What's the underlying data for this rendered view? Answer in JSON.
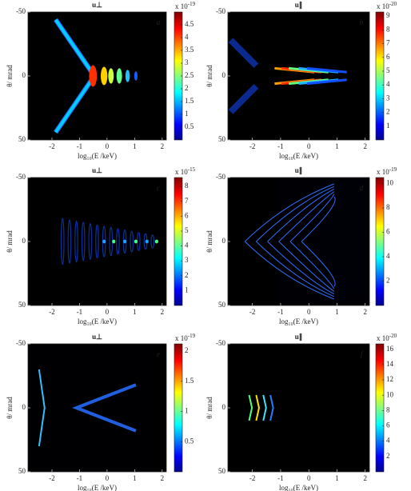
{
  "chart_data": [
    {
      "type": "heatmap",
      "title": "u⊥",
      "panel_label": "a",
      "xlabel": "log₁₀(E /keV)",
      "ylabel": "θ/ mrad",
      "xlim": [
        -2.87,
        2.15
      ],
      "xticks": [
        -2,
        -1,
        0,
        1,
        2
      ],
      "ylim": [
        -50,
        50
      ],
      "yticks": [
        -50,
        0,
        50
      ],
      "y_reversed": true,
      "colormap": "jet",
      "clim": [
        0,
        5
      ],
      "cticks": [
        0.5,
        1,
        1.5,
        2,
        2.5,
        3,
        3.5,
        4,
        4.5
      ],
      "cscale": "x 10",
      "cscale_exponent": "-19"
    },
    {
      "type": "heatmap",
      "title": "u∥",
      "panel_label": "b",
      "xlabel": "log₁₀(E /keV)",
      "ylabel": "θ/ mrad",
      "xlim": [
        -2.87,
        2.15
      ],
      "xticks": [
        -2,
        -1,
        0,
        1,
        2
      ],
      "ylim": [
        -50,
        50
      ],
      "yticks": [
        -50,
        0,
        50
      ],
      "y_reversed": true,
      "colormap": "jet",
      "clim": [
        0,
        9.3
      ],
      "cticks": [
        1,
        2,
        3,
        4,
        5,
        6,
        7,
        8,
        9
      ],
      "cscale": "x 10",
      "cscale_exponent": "-20"
    },
    {
      "type": "heatmap",
      "title": "u⊥",
      "panel_label": "c",
      "xlabel": "log₁₀(E /keV)",
      "ylabel": "θ/ mrad",
      "xlim": [
        -2.87,
        2.15
      ],
      "xticks": [
        -2,
        -1,
        0,
        1,
        2
      ],
      "ylim": [
        -50,
        50
      ],
      "yticks": [
        -50,
        0,
        50
      ],
      "y_reversed": true,
      "colormap": "jet",
      "clim": [
        0,
        8.6
      ],
      "cticks": [
        1,
        2,
        3,
        4,
        5,
        6,
        7,
        8
      ],
      "cscale": "x 10",
      "cscale_exponent": "-15"
    },
    {
      "type": "heatmap",
      "title": "u∥",
      "panel_label": "d",
      "xlabel": "log₁₀(E /keV)",
      "ylabel": "θ/ mrad",
      "xlim": [
        -2.87,
        2.15
      ],
      "xticks": [
        -2,
        -1,
        0,
        1,
        2
      ],
      "ylim": [
        -50,
        50
      ],
      "yticks": [
        -50,
        0,
        50
      ],
      "y_reversed": true,
      "colormap": "jet",
      "clim": [
        0,
        10.5
      ],
      "cticks": [
        2,
        4,
        6,
        8,
        10
      ],
      "cscale": "x 10",
      "cscale_exponent": "-19"
    },
    {
      "type": "heatmap",
      "title": "u⊥",
      "panel_label": "e",
      "xlabel": "log₁₀(E /keV)",
      "ylabel": "θ/ mrad",
      "xlim": [
        -2.87,
        2.15
      ],
      "xticks": [
        -2,
        -1,
        0,
        1,
        2
      ],
      "ylim": [
        -50,
        50
      ],
      "yticks": [
        -50,
        0,
        50
      ],
      "y_reversed": true,
      "colormap": "jet",
      "clim": [
        0,
        2.12
      ],
      "cticks": [
        0.5,
        1,
        1.5,
        2
      ],
      "cscale": "x 10",
      "cscale_exponent": "-19"
    },
    {
      "type": "heatmap",
      "title": "u∥",
      "panel_label": "f",
      "xlabel": "log₁₀(E /keV)",
      "ylabel": "θ/ mrad",
      "xlim": [
        -2.87,
        2.15
      ],
      "xticks": [
        -2,
        -1,
        0,
        1,
        2
      ],
      "ylim": [
        -50,
        50
      ],
      "yticks": [
        -50,
        0,
        50
      ],
      "y_reversed": true,
      "colormap": "jet",
      "clim": [
        0,
        16.7
      ],
      "cticks": [
        2,
        4,
        6,
        8,
        10,
        12,
        14,
        16
      ],
      "cscale": "x 10",
      "cscale_exponent": "-20"
    }
  ]
}
